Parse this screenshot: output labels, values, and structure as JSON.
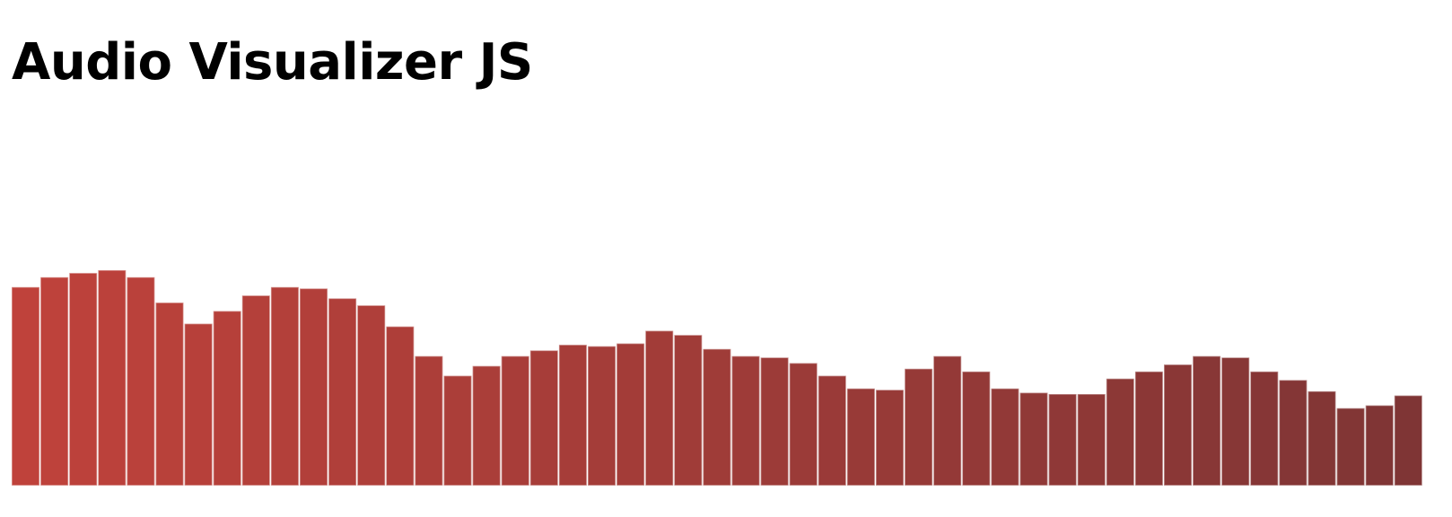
{
  "header": {
    "title": "Audio Visualizer JS"
  },
  "chart_data": {
    "type": "bar",
    "ylim": [
      0,
      255
    ],
    "grid": false,
    "values": [
      141,
      148,
      151,
      153,
      148,
      130,
      115,
      124,
      135,
      141,
      140,
      133,
      128,
      113,
      92,
      78,
      85,
      92,
      96,
      100,
      99,
      101,
      110,
      107,
      97,
      92,
      91,
      87,
      78,
      69,
      68,
      83,
      92,
      81,
      69,
      66,
      65,
      65,
      76,
      81,
      86,
      92,
      91,
      81,
      75,
      67,
      55,
      57,
      64
    ],
    "colors": {
      "start": "#bf423b",
      "end": "#7f3535",
      "edge": "#ffffff"
    }
  }
}
